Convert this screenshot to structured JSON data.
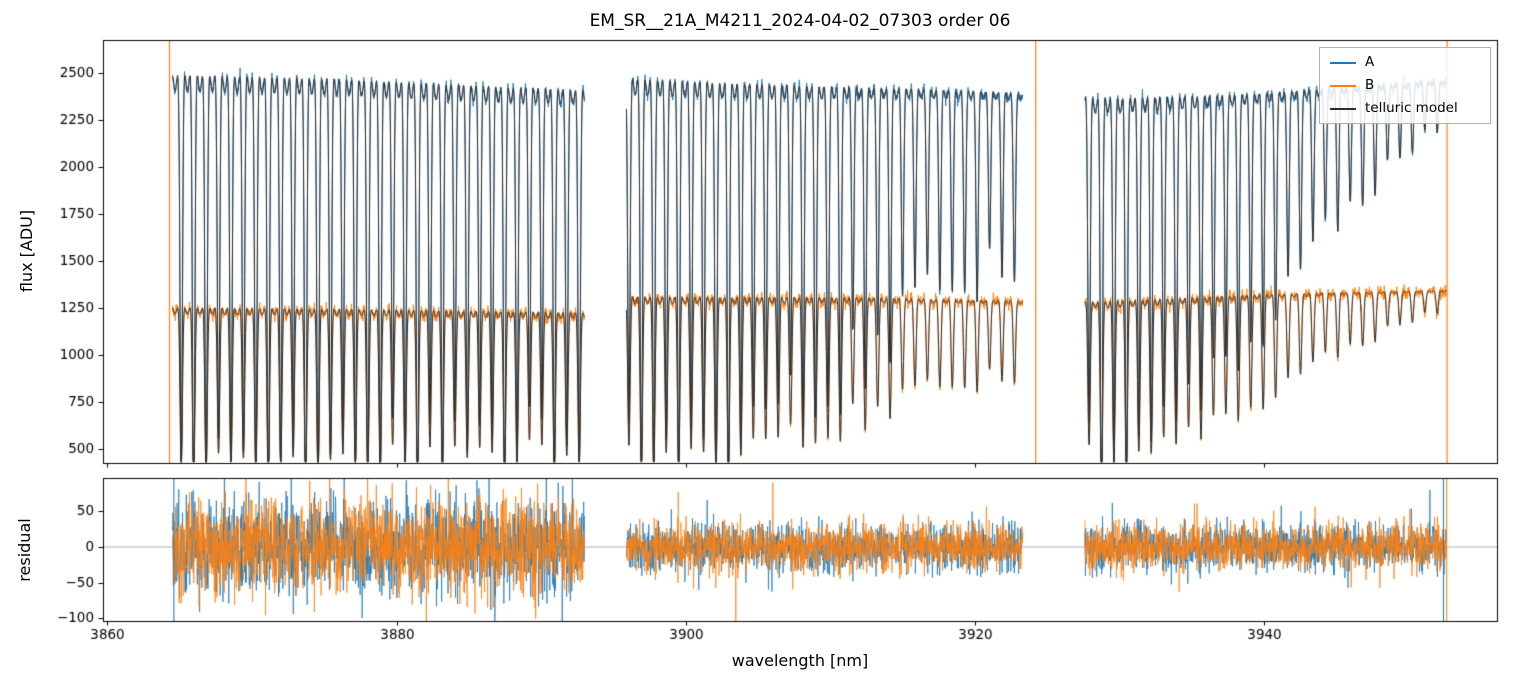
{
  "chart_data": {
    "type": "line",
    "title": "EM_SR__21A_M4211_2024-04-02_07303  order 06",
    "xlabel": "wavelength [nm]",
    "xlim": [
      3859.7,
      3956.1
    ],
    "xticks": [
      3860,
      3880,
      3900,
      3920,
      3940
    ],
    "panels": [
      {
        "name": "flux",
        "ylabel": "flux [ADU]",
        "ylim": [
          426,
          2675
        ],
        "yticks": [
          500,
          750,
          1000,
          1250,
          1500,
          1750,
          2000,
          2250,
          2500
        ]
      },
      {
        "name": "residual",
        "ylabel": "residual",
        "ylim": [
          -104,
          97
        ],
        "yticks": [
          -100,
          -50,
          0,
          50
        ]
      }
    ],
    "legend": [
      {
        "label": "A",
        "color": "#1f77b4"
      },
      {
        "label": "B",
        "color": "#ff7f0e"
      },
      {
        "label": "telluric model",
        "color": "#2d2d2d"
      }
    ],
    "grid": false,
    "legend_position": "upper right",
    "segments": [
      [
        3864.5,
        3893.0
      ],
      [
        3895.9,
        3923.3
      ],
      [
        3927.6,
        3952.6
      ]
    ],
    "edge_spikes": {
      "flux_orange": [
        3864.3,
        3924.2,
        3952.65
      ],
      "residual": [
        {
          "x": 3864.6,
          "color": "#1f77b4"
        },
        {
          "x": 3952.4,
          "color": "#1f77b4"
        },
        {
          "x": 3952.62,
          "color": "#ff7f0e"
        }
      ]
    },
    "synthesis": {
      "seed": 42,
      "step": 0.02,
      "floor": 430,
      "line_start": 3864.25,
      "line_spacing": 0.86,
      "line_sigma": 0.115,
      "secondary_depth": 0.07,
      "depth_jitter": [
        0.85,
        1.15
      ],
      "depth_profile": [
        [
          3864.5,
          1.05
        ],
        [
          3886.0,
          1.05
        ],
        [
          3893.0,
          0.95
        ],
        [
          3895.9,
          1.05
        ],
        [
          3902.0,
          1.0
        ],
        [
          3908.0,
          0.88
        ],
        [
          3914.0,
          0.66
        ],
        [
          3919.0,
          0.54
        ],
        [
          3923.3,
          0.45
        ],
        [
          3927.6,
          1.02
        ],
        [
          3931.0,
          0.97
        ],
        [
          3936.0,
          0.8
        ],
        [
          3941.0,
          0.55
        ],
        [
          3946.0,
          0.33
        ],
        [
          3950.0,
          0.18
        ],
        [
          3952.6,
          0.1
        ]
      ],
      "continuum_A": [
        [
          3864.5,
          2560
        ],
        [
          3875.0,
          2540
        ],
        [
          3893.0,
          2470
        ],
        [
          3895.9,
          2540
        ],
        [
          3910.0,
          2480
        ],
        [
          3923.3,
          2420
        ],
        [
          3927.6,
          2430
        ],
        [
          3940.0,
          2430
        ],
        [
          3952.6,
          2460
        ]
      ],
      "continuum_B": [
        [
          3864.5,
          1280
        ],
        [
          3880.0,
          1268
        ],
        [
          3893.0,
          1250
        ],
        [
          3895.9,
          1340
        ],
        [
          3910.0,
          1330
        ],
        [
          3923.3,
          1300
        ],
        [
          3927.6,
          1310
        ],
        [
          3940.0,
          1340
        ],
        [
          3952.6,
          1345
        ]
      ],
      "noise_A": 14,
      "noise_B": 16,
      "residual_sigma": [
        33,
        17,
        16
      ],
      "outlier_prob": 0.02,
      "outlier_scale": 2.2
    }
  }
}
